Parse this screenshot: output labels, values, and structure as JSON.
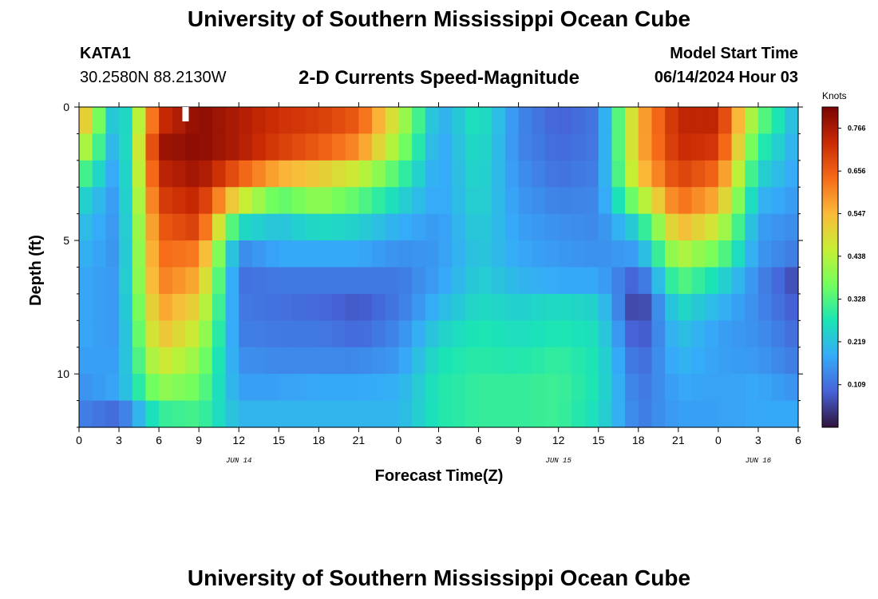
{
  "header": {
    "title": "University of Southern Mississippi Ocean Cube",
    "station_id": "KATA1",
    "coordinates": "30.2580N  88.2130W",
    "subtitle": "2-D Currents Speed-Magnitude",
    "model_start_label": "Model Start Time",
    "model_start_value": "06/14/2024 Hour 03"
  },
  "footer": {
    "title": "University of Southern Mississippi Ocean Cube"
  },
  "chart_data": {
    "type": "heatmap",
    "title": "2-D Currents Speed-Magnitude",
    "xlabel": "Forecast Time(Z)",
    "ylabel": "Depth (ft)",
    "x_range_hours": [
      0,
      54
    ],
    "y_range_ft": [
      0,
      12
    ],
    "y_inverted": true,
    "x_ticks": [
      {
        "h": 0,
        "label": "0"
      },
      {
        "h": 3,
        "label": "3"
      },
      {
        "h": 6,
        "label": "6"
      },
      {
        "h": 9,
        "label": "9"
      },
      {
        "h": 12,
        "label": "12"
      },
      {
        "h": 15,
        "label": "15"
      },
      {
        "h": 18,
        "label": "18"
      },
      {
        "h": 21,
        "label": "21"
      },
      {
        "h": 24,
        "label": "0"
      },
      {
        "h": 27,
        "label": "3"
      },
      {
        "h": 30,
        "label": "6"
      },
      {
        "h": 33,
        "label": "9"
      },
      {
        "h": 36,
        "label": "12"
      },
      {
        "h": 39,
        "label": "15"
      },
      {
        "h": 42,
        "label": "18"
      },
      {
        "h": 45,
        "label": "21"
      },
      {
        "h": 48,
        "label": "0"
      },
      {
        "h": 51,
        "label": "3"
      },
      {
        "h": 54,
        "label": "6"
      }
    ],
    "y_ticks": [
      {
        "v": 0,
        "label": "0"
      },
      {
        "v": 5,
        "label": "5"
      },
      {
        "v": 10,
        "label": "10"
      }
    ],
    "date_labels": [
      {
        "h": 12,
        "label": "JUN 14"
      },
      {
        "h": 36,
        "label": "JUN 15"
      },
      {
        "h": 51,
        "label": "JUN 16"
      }
    ],
    "colorbar": {
      "title": "Knots",
      "min": 0.0,
      "max": 0.82,
      "ticks": [
        "0.109",
        "0.219",
        "0.328",
        "0.438",
        "0.547",
        "0.656",
        "0.766"
      ],
      "colormap": [
        "#30123b",
        "#4662d7",
        "#36aaf9",
        "#1ae4b6",
        "#72fe5e",
        "#c7ef34",
        "#faba39",
        "#f66b19",
        "#ca2a04",
        "#7a0403"
      ]
    },
    "depth_levels_ft": [
      0.5,
      1.5,
      2.5,
      3.5,
      4.5,
      5.5,
      6.5,
      7.5,
      8.5,
      9.5,
      10.5,
      11.5
    ],
    "hour_nodes": [
      0,
      3,
      6,
      9,
      12,
      15,
      18,
      21,
      24,
      27,
      30,
      33,
      36,
      39,
      42,
      45,
      48,
      51,
      54
    ],
    "speed_knots_by_depth": [
      [
        0.58,
        0.16,
        0.72,
        0.8,
        0.76,
        0.72,
        0.7,
        0.66,
        0.45,
        0.18,
        0.28,
        0.14,
        0.09,
        0.12,
        0.55,
        0.74,
        0.74,
        0.36,
        0.19
      ],
      [
        0.48,
        0.15,
        0.78,
        0.8,
        0.76,
        0.7,
        0.66,
        0.6,
        0.4,
        0.17,
        0.27,
        0.14,
        0.1,
        0.12,
        0.55,
        0.73,
        0.71,
        0.3,
        0.18
      ],
      [
        0.35,
        0.15,
        0.74,
        0.78,
        0.66,
        0.56,
        0.52,
        0.46,
        0.32,
        0.17,
        0.26,
        0.15,
        0.11,
        0.13,
        0.52,
        0.7,
        0.64,
        0.25,
        0.17
      ],
      [
        0.26,
        0.15,
        0.7,
        0.74,
        0.48,
        0.34,
        0.4,
        0.34,
        0.25,
        0.17,
        0.25,
        0.16,
        0.13,
        0.14,
        0.4,
        0.64,
        0.56,
        0.2,
        0.16
      ],
      [
        0.22,
        0.15,
        0.66,
        0.7,
        0.26,
        0.22,
        0.26,
        0.24,
        0.19,
        0.16,
        0.24,
        0.17,
        0.15,
        0.14,
        0.25,
        0.55,
        0.46,
        0.17,
        0.14
      ],
      [
        0.2,
        0.15,
        0.64,
        0.62,
        0.14,
        0.18,
        0.18,
        0.18,
        0.15,
        0.16,
        0.23,
        0.18,
        0.16,
        0.15,
        0.17,
        0.44,
        0.36,
        0.16,
        0.12
      ],
      [
        0.18,
        0.16,
        0.62,
        0.56,
        0.11,
        0.12,
        0.12,
        0.12,
        0.12,
        0.17,
        0.24,
        0.2,
        0.18,
        0.18,
        0.08,
        0.34,
        0.26,
        0.14,
        0.06
      ],
      [
        0.18,
        0.16,
        0.58,
        0.5,
        0.12,
        0.11,
        0.1,
        0.08,
        0.12,
        0.2,
        0.26,
        0.24,
        0.26,
        0.24,
        0.03,
        0.26,
        0.2,
        0.14,
        0.08
      ],
      [
        0.18,
        0.16,
        0.54,
        0.45,
        0.13,
        0.12,
        0.12,
        0.1,
        0.14,
        0.24,
        0.28,
        0.26,
        0.28,
        0.26,
        0.06,
        0.22,
        0.17,
        0.15,
        0.1
      ],
      [
        0.17,
        0.17,
        0.48,
        0.4,
        0.15,
        0.14,
        0.14,
        0.14,
        0.16,
        0.27,
        0.29,
        0.28,
        0.3,
        0.27,
        0.09,
        0.2,
        0.17,
        0.16,
        0.12
      ],
      [
        0.15,
        0.18,
        0.4,
        0.36,
        0.17,
        0.17,
        0.18,
        0.18,
        0.19,
        0.28,
        0.3,
        0.3,
        0.31,
        0.27,
        0.11,
        0.18,
        0.17,
        0.18,
        0.15
      ],
      [
        0.13,
        0.1,
        0.3,
        0.32,
        0.2,
        0.2,
        0.2,
        0.2,
        0.2,
        0.28,
        0.3,
        0.3,
        0.31,
        0.26,
        0.12,
        0.17,
        0.17,
        0.18,
        0.18
      ]
    ]
  }
}
